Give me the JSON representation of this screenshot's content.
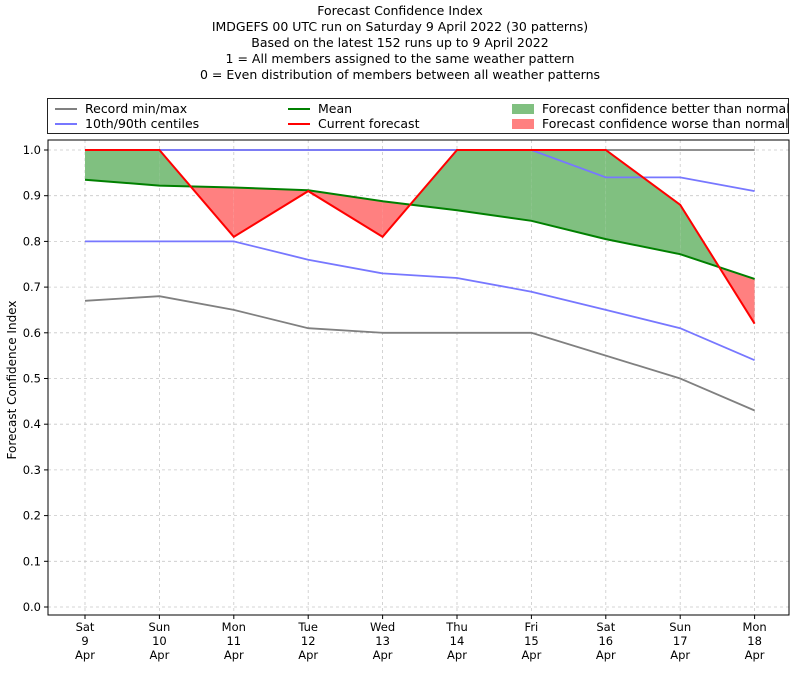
{
  "chart_data": {
    "type": "line",
    "title_lines": [
      "Forecast Confidence Index",
      "IMDGEFS 00 UTC run on Saturday 9 April 2022 (30 patterns)",
      "Based on the latest 152 runs up to 9 April 2022",
      "1 = All members assigned to the same weather pattern",
      "0 = Even distribution of members between all weather patterns"
    ],
    "ylabel": "Forecast Confidence Index",
    "ylim": [
      0,
      1.0
    ],
    "yticks": [
      "0.0",
      "0.1",
      "0.2",
      "0.3",
      "0.4",
      "0.5",
      "0.6",
      "0.7",
      "0.8",
      "0.9",
      "1.0"
    ],
    "categories": [
      [
        "Sat",
        "9",
        "Apr"
      ],
      [
        "Sun",
        "10",
        "Apr"
      ],
      [
        "Mon",
        "11",
        "Apr"
      ],
      [
        "Tue",
        "12",
        "Apr"
      ],
      [
        "Wed",
        "13",
        "Apr"
      ],
      [
        "Thu",
        "14",
        "Apr"
      ],
      [
        "Fri",
        "15",
        "Apr"
      ],
      [
        "Sat",
        "16",
        "Apr"
      ],
      [
        "Sun",
        "17",
        "Apr"
      ],
      [
        "Mon",
        "18",
        "Apr"
      ]
    ],
    "grid": true,
    "legend_position": "top",
    "series": [
      {
        "name": "Record min/max",
        "key": "record_min",
        "color": "#808080",
        "values": [
          0.67,
          0.68,
          0.65,
          0.61,
          0.6,
          0.6,
          0.6,
          0.55,
          0.5,
          0.43
        ]
      },
      {
        "name": "Record min/max",
        "key": "record_max",
        "color": "#808080",
        "values": [
          1.0,
          1.0,
          1.0,
          1.0,
          1.0,
          1.0,
          1.0,
          1.0,
          1.0,
          1.0
        ]
      },
      {
        "name": "10th/90th centiles",
        "key": "p10",
        "color": "#7777ff",
        "values": [
          0.8,
          0.8,
          0.8,
          0.76,
          0.73,
          0.72,
          0.69,
          0.65,
          0.61,
          0.54
        ]
      },
      {
        "name": "10th/90th centiles",
        "key": "p90",
        "color": "#7777ff",
        "values": [
          1.0,
          1.0,
          1.0,
          1.0,
          1.0,
          1.0,
          1.0,
          0.94,
          0.94,
          0.91
        ]
      },
      {
        "name": "Mean",
        "key": "mean",
        "color": "#008000",
        "values": [
          0.935,
          0.922,
          0.918,
          0.912,
          0.888,
          0.868,
          0.845,
          0.805,
          0.772,
          0.718
        ]
      },
      {
        "name": "Current forecast",
        "key": "current",
        "color": "#ff0000",
        "values": [
          1.0,
          1.0,
          0.81,
          0.91,
          0.81,
          1.0,
          1.0,
          1.0,
          0.88,
          0.62
        ]
      }
    ],
    "fills": [
      {
        "name": "Forecast confidence better than normal",
        "color": "#80c080"
      },
      {
        "name": "Forecast confidence worse than normal",
        "color": "#ff8080"
      }
    ],
    "legend": [
      {
        "label": "Record min/max",
        "kind": "line",
        "color": "#808080"
      },
      {
        "label": "10th/90th centiles",
        "kind": "line",
        "color": "#7777ff"
      },
      {
        "label": "Mean",
        "kind": "line",
        "color": "#008000"
      },
      {
        "label": "Current forecast",
        "kind": "line",
        "color": "#ff0000"
      },
      {
        "label": "Forecast confidence better than normal",
        "kind": "patch",
        "color": "#80c080"
      },
      {
        "label": "Forecast confidence worse than normal",
        "kind": "patch",
        "color": "#ff8080"
      }
    ]
  }
}
